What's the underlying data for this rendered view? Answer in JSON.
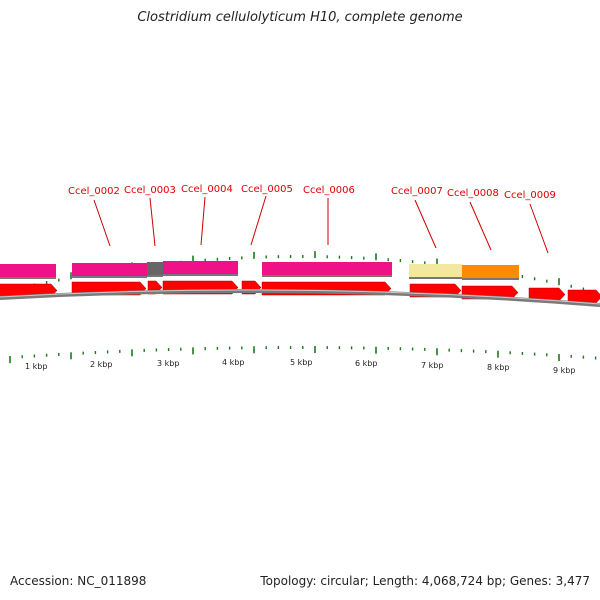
{
  "title": "Clostridium cellulolyticum H10, complete genome",
  "accession_text": "Accession: NC_011898",
  "info_text": "Topology: circular; Length: 4,068,724 bp; Genes: 3,477",
  "colors": {
    "backbone": "#7a7a7a",
    "gene_red": "#ff0000",
    "gene_label": "#e00000",
    "magenta": "#ee1188",
    "gray_block": "#666666",
    "pale_yellow": "#f2e8a0",
    "orange": "#ff8c00",
    "ticks": "#1a7a1a"
  },
  "gene_labels": [
    "Ccel_0002",
    "Ccel_0003",
    "Ccel_0004",
    "Ccel_0005",
    "Ccel_0006",
    "Ccel_0007",
    "Ccel_0008",
    "Ccel_0009"
  ],
  "kbp_labels": [
    "1 kbp",
    "2 kbp",
    "3 kbp",
    "4 kbp",
    "5 kbp",
    "6 kbp",
    "7 kbp",
    "8 kbp",
    "9 kbp"
  ]
}
